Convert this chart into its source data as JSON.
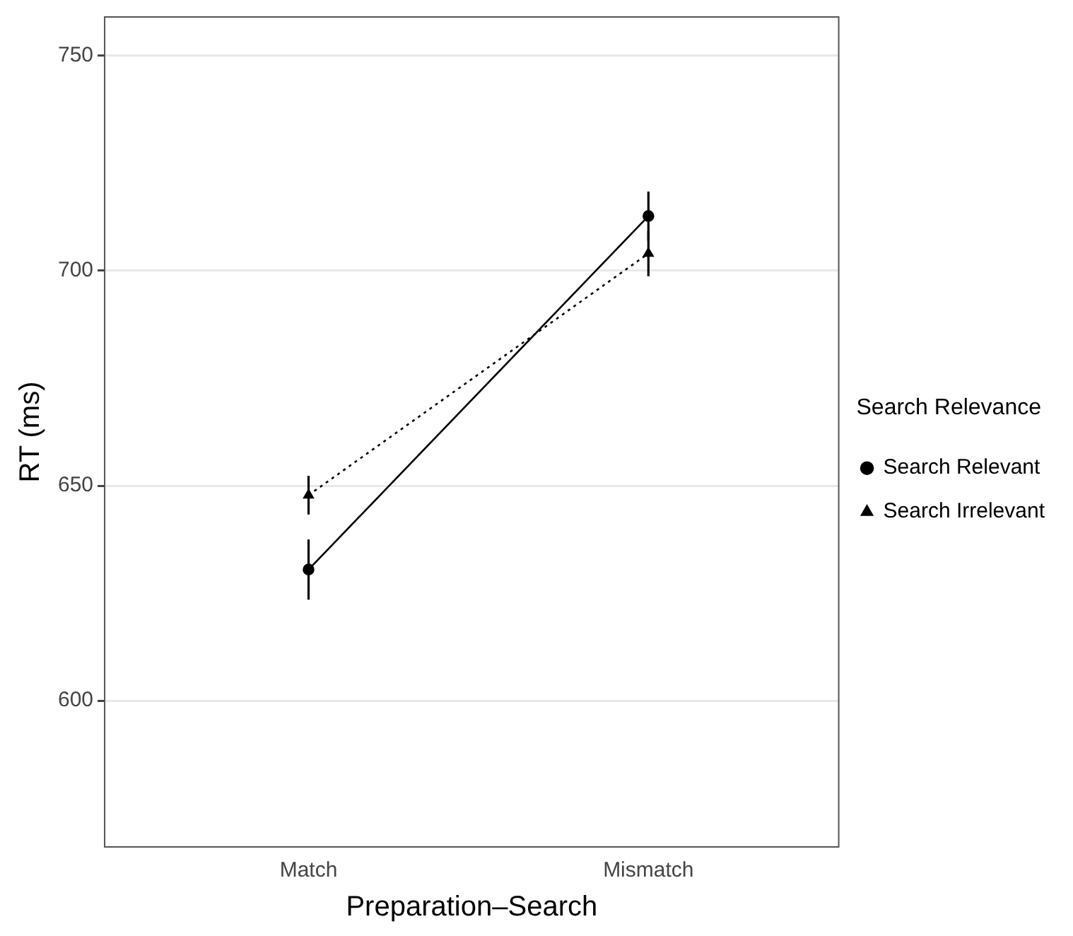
{
  "chart_data": {
    "type": "line",
    "xlabel": "Preparation–Search",
    "ylabel": "RT (ms)",
    "legend_title": "Search Relevance",
    "categories": [
      "Match",
      "Mismatch"
    ],
    "series": [
      {
        "name": "Search Relevant",
        "color": "#000000",
        "values": [
          630.5,
          712.7
        ],
        "errors": [
          7,
          5.7
        ],
        "marker": "circle",
        "line_style": "solid"
      },
      {
        "name": "Search Irrelevant",
        "color": "#000000",
        "values": [
          647.8,
          704
        ],
        "errors": [
          4.5,
          5.3
        ],
        "marker": "triangle",
        "line_style": "dotted"
      }
    ],
    "ylim": [
      566,
      759
    ],
    "yticks": [
      600,
      650,
      700,
      750
    ],
    "grid": "y",
    "legend": "right"
  }
}
